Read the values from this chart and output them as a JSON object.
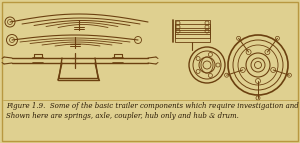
{
  "background_color": "#dfd090",
  "border_color": "#b89840",
  "fig_width": 3.0,
  "fig_height": 1.43,
  "dpi": 100,
  "caption_line1": "Figure 1.9.  Some of the basic trailer components which require investigation and selection.",
  "caption_line2": "Shown here are springs, axle, coupler, hub only and hub & drum.",
  "caption_fontsize": 5.0,
  "caption_color": "#2a1a05",
  "drawing_color": "#6b4010",
  "drawing_color_dark": "#3a2000"
}
